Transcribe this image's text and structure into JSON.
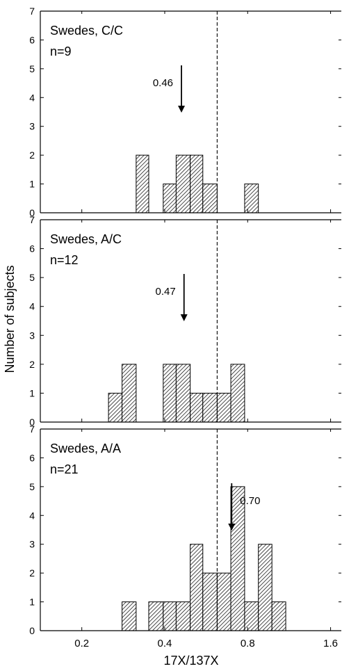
{
  "chart_data": {
    "type": "bar",
    "ylabel": "Number of subjects",
    "xlabel": "17X/137X",
    "x_ticks": [
      0.2,
      0.4,
      0.8,
      1.6
    ],
    "x_scale": "log2",
    "xlim": [
      0.1414,
      1.75
    ],
    "ylim": [
      0,
      7
    ],
    "y_ticks": [
      0,
      1,
      2,
      3,
      4,
      5,
      6,
      7
    ],
    "bin_edges": [
      0.25,
      0.28,
      0.315,
      0.35,
      0.395,
      0.44,
      0.495,
      0.55,
      0.62,
      0.695,
      0.78,
      0.875,
      0.98,
      1.1
    ],
    "reference_line_x": 0.62,
    "panels": [
      {
        "title": "Swedes, C/C",
        "n_label": "n=9",
        "counts": [
          0,
          0,
          2,
          0,
          1,
          2,
          2,
          1,
          0,
          0,
          1,
          0,
          0
        ],
        "median_label": "0.46",
        "median_x": 0.46
      },
      {
        "title": "Swedes, A/C",
        "n_label": "n=12",
        "counts": [
          1,
          2,
          0,
          0,
          2,
          2,
          1,
          1,
          1,
          2,
          0,
          0,
          0
        ],
        "median_label": "0.47",
        "median_x": 0.47
      },
      {
        "title": "Swedes, A/A",
        "n_label": "n=21",
        "counts": [
          0,
          1,
          0,
          1,
          1,
          1,
          3,
          2,
          2,
          5,
          1,
          3,
          1
        ],
        "median_label": "0.70",
        "median_x": 0.7
      }
    ]
  }
}
